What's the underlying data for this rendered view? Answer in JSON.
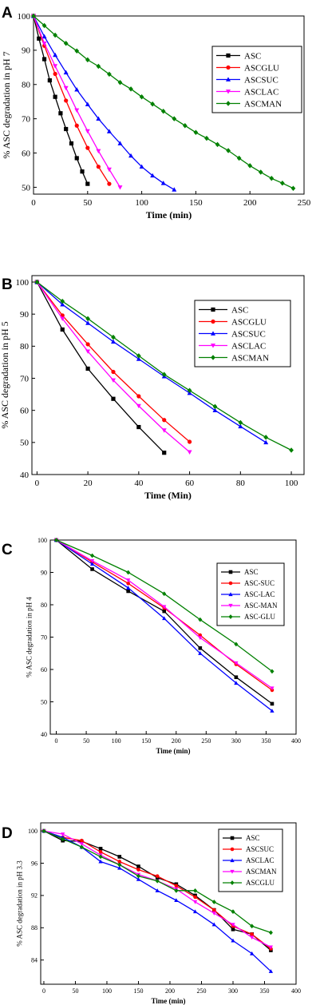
{
  "chart_data": [
    {
      "type": "line",
      "panel_label": "A",
      "xlabel": "Time (min)",
      "ylabel": "% ASC degradation in pH 7",
      "xlim": [
        0,
        250
      ],
      "ylim": [
        48,
        100
      ],
      "xticks": [
        "0",
        "50",
        "100",
        "150",
        "200",
        "250"
      ],
      "yticks": [
        "50",
        "60",
        "70",
        "80",
        "90",
        "100"
      ],
      "legend_position": "top-right",
      "series": [
        {
          "name": "ASC",
          "color": "#000000",
          "marker": "square",
          "x": [
            0,
            5,
            10,
            15,
            20,
            25,
            30,
            35,
            40,
            45,
            50
          ],
          "y": [
            100,
            93.4,
            87.4,
            81.2,
            76.4,
            71.6,
            67.0,
            62.8,
            58.5,
            54.6,
            51.0
          ]
        },
        {
          "name": "ASCGLU",
          "color": "#ff0000",
          "marker": "circle",
          "x": [
            0,
            10,
            20,
            30,
            40,
            50,
            60,
            70
          ],
          "y": [
            100,
            91.3,
            83.1,
            75.3,
            68.0,
            61.5,
            56.0,
            51.0
          ]
        },
        {
          "name": "ASCSUC",
          "color": "#0000ff",
          "marker": "triangle-up",
          "x": [
            0,
            10,
            20,
            30,
            40,
            50,
            60,
            70,
            80,
            90,
            100,
            110,
            120,
            130
          ],
          "y": [
            100,
            94.0,
            88.6,
            83.5,
            78.5,
            74.2,
            70.0,
            66.3,
            62.8,
            59.2,
            56.0,
            53.4,
            51.2,
            49.3
          ]
        },
        {
          "name": "ASCLAC",
          "color": "#ff00ff",
          "marker": "triangle-down",
          "x": [
            0,
            10,
            20,
            30,
            40,
            50,
            60,
            70,
            80
          ],
          "y": [
            100,
            92.0,
            85.4,
            79.0,
            72.5,
            66.4,
            60.6,
            55.2,
            50.0
          ]
        },
        {
          "name": "ASCMAN",
          "color": "#008000",
          "marker": "diamond",
          "x": [
            0,
            10,
            20,
            30,
            40,
            50,
            60,
            70,
            80,
            90,
            100,
            110,
            120,
            130,
            140,
            150,
            160,
            170,
            180,
            190,
            200,
            210,
            220,
            230,
            240
          ],
          "y": [
            100,
            97.2,
            94.4,
            92.0,
            89.8,
            87.2,
            85.3,
            83.0,
            80.6,
            78.7,
            76.4,
            74.3,
            72.2,
            70.0,
            68.0,
            66.0,
            64.3,
            62.5,
            60.7,
            58.5,
            56.3,
            54.4,
            52.6,
            51.2,
            49.7
          ]
        }
      ]
    },
    {
      "type": "line",
      "panel_label": "B",
      "xlabel": "Time (Min)",
      "ylabel": "% ASC degradation in pH 5",
      "xlim": [
        -2,
        105
      ],
      "ylim": [
        40,
        102
      ],
      "xticks": [
        "0",
        "20",
        "40",
        "60",
        "80",
        "100"
      ],
      "yticks": [
        "40",
        "50",
        "60",
        "70",
        "80",
        "90",
        "100"
      ],
      "legend_position": "top-right",
      "series": [
        {
          "name": "ASC",
          "color": "#000000",
          "marker": "square",
          "x": [
            0,
            10,
            20,
            30,
            40,
            50
          ],
          "y": [
            100,
            85.2,
            73.0,
            63.6,
            54.8,
            46.8
          ]
        },
        {
          "name": "ASCGLU",
          "color": "#ff0000",
          "marker": "circle",
          "x": [
            0,
            10,
            20,
            30,
            40,
            50,
            60
          ],
          "y": [
            100,
            89.6,
            80.6,
            72.0,
            64.4,
            57.0,
            50.2
          ]
        },
        {
          "name": "ASCSUC",
          "color": "#0000ff",
          "marker": "triangle-up",
          "x": [
            0,
            10,
            20,
            30,
            40,
            50,
            60,
            70,
            80,
            90
          ],
          "y": [
            100,
            93.0,
            87.2,
            81.4,
            76.0,
            70.6,
            65.4,
            60.0,
            55.0,
            50.0
          ]
        },
        {
          "name": "ASCLAC",
          "color": "#ff00ff",
          "marker": "triangle-down",
          "x": [
            0,
            10,
            20,
            30,
            40,
            50,
            60
          ],
          "y": [
            100,
            88.6,
            78.4,
            69.4,
            61.4,
            53.8,
            47.0
          ]
        },
        {
          "name": "ASCMAN",
          "color": "#008000",
          "marker": "diamond",
          "x": [
            0,
            10,
            20,
            30,
            40,
            50,
            60,
            70,
            80,
            90,
            100
          ],
          "y": [
            100,
            94.0,
            88.6,
            82.8,
            77.0,
            71.2,
            66.2,
            61.2,
            56.2,
            51.6,
            47.6
          ]
        }
      ]
    },
    {
      "type": "line",
      "panel_label": "C",
      "xlabel": "Time (min)",
      "ylabel": "% ASC degradation in pH 4",
      "xlim": [
        -10,
        400
      ],
      "ylim": [
        40,
        100
      ],
      "xticks": [
        "0",
        "50",
        "100",
        "150",
        "200",
        "250",
        "300",
        "350",
        "400"
      ],
      "yticks": [
        "40",
        "50",
        "60",
        "70",
        "80",
        "90",
        "100"
      ],
      "legend_position": "top-right",
      "series": [
        {
          "name": "ASC",
          "color": "#000000",
          "marker": "square",
          "x": [
            0,
            60,
            120,
            180,
            240,
            300,
            360
          ],
          "y": [
            100,
            91.0,
            84.2,
            78.0,
            66.6,
            57.6,
            49.4
          ]
        },
        {
          "name": "ASC-SUC",
          "color": "#ff0000",
          "marker": "circle",
          "x": [
            0,
            60,
            120,
            180,
            240,
            300,
            360
          ],
          "y": [
            100,
            93.2,
            86.6,
            79.0,
            70.6,
            61.6,
            53.6
          ]
        },
        {
          "name": "ASC-LAC",
          "color": "#0000ff",
          "marker": "triangle-up",
          "x": [
            0,
            60,
            120,
            180,
            240,
            300,
            360
          ],
          "y": [
            100,
            92.6,
            85.2,
            75.8,
            65.0,
            55.8,
            47.2
          ]
        },
        {
          "name": "ASC-MAN",
          "color": "#ff00ff",
          "marker": "triangle-down",
          "x": [
            0,
            60,
            120,
            180,
            240,
            300,
            360
          ],
          "y": [
            100,
            93.6,
            87.6,
            79.4,
            69.8,
            62.0,
            54.2
          ]
        },
        {
          "name": "ASC-GLU",
          "color": "#008000",
          "marker": "diamond",
          "x": [
            0,
            60,
            120,
            180,
            240,
            300,
            360
          ],
          "y": [
            100,
            95.2,
            90.0,
            83.4,
            75.4,
            67.8,
            59.4
          ]
        }
      ]
    },
    {
      "type": "line",
      "panel_label": "D",
      "xlabel": "Time (min)",
      "ylabel": "% ASC degradation in pH 3.3",
      "xlim": [
        -5,
        400
      ],
      "ylim": [
        81,
        101
      ],
      "xticks": [
        "0",
        "50",
        "100",
        "150",
        "200",
        "250",
        "300",
        "350",
        "400"
      ],
      "yticks": [
        "84",
        "88",
        "92",
        "96",
        "100"
      ],
      "legend_position": "top-right",
      "series": [
        {
          "name": "ASC",
          "color": "#000000",
          "marker": "square",
          "x": [
            0,
            30,
            60,
            90,
            120,
            150,
            180,
            210,
            240,
            270,
            300,
            330,
            360
          ],
          "y": [
            100,
            98.8,
            98.7,
            97.8,
            96.8,
            95.6,
            94.2,
            93.4,
            92.0,
            90.2,
            87.8,
            87.2,
            85.2
          ]
        },
        {
          "name": "ASCSUC",
          "color": "#ff0000",
          "marker": "circle",
          "x": [
            0,
            30,
            60,
            90,
            120,
            150,
            180,
            210,
            240,
            270,
            300,
            330,
            360
          ],
          "y": [
            100,
            99.2,
            98.8,
            97.4,
            96.2,
            95.2,
            94.4,
            93.2,
            91.8,
            90.2,
            88.2,
            87.2,
            85.4
          ]
        },
        {
          "name": "ASCLAC",
          "color": "#0000ff",
          "marker": "triangle-up",
          "x": [
            0,
            30,
            60,
            90,
            120,
            150,
            180,
            210,
            240,
            270,
            300,
            330,
            360
          ],
          "y": [
            100,
            99.2,
            98.0,
            96.2,
            95.4,
            94.0,
            92.6,
            91.4,
            90.0,
            88.4,
            86.4,
            84.8,
            82.6
          ]
        },
        {
          "name": "ASCMAN",
          "color": "#ff00ff",
          "marker": "triangle-down",
          "x": [
            0,
            30,
            60,
            90,
            120,
            150,
            180,
            210,
            240,
            270,
            300,
            330,
            360
          ],
          "y": [
            100,
            99.6,
            98.4,
            97.0,
            95.8,
            94.6,
            93.8,
            92.8,
            91.2,
            89.8,
            88.4,
            86.8,
            85.6
          ]
        },
        {
          "name": "ASCGLU",
          "color": "#008000",
          "marker": "diamond",
          "x": [
            0,
            30,
            60,
            90,
            120,
            150,
            180,
            210,
            240,
            270,
            300,
            330,
            360
          ],
          "y": [
            100,
            99.0,
            98.0,
            96.8,
            95.8,
            94.4,
            93.8,
            92.6,
            92.6,
            91.2,
            90.0,
            88.2,
            87.4
          ]
        }
      ]
    }
  ]
}
